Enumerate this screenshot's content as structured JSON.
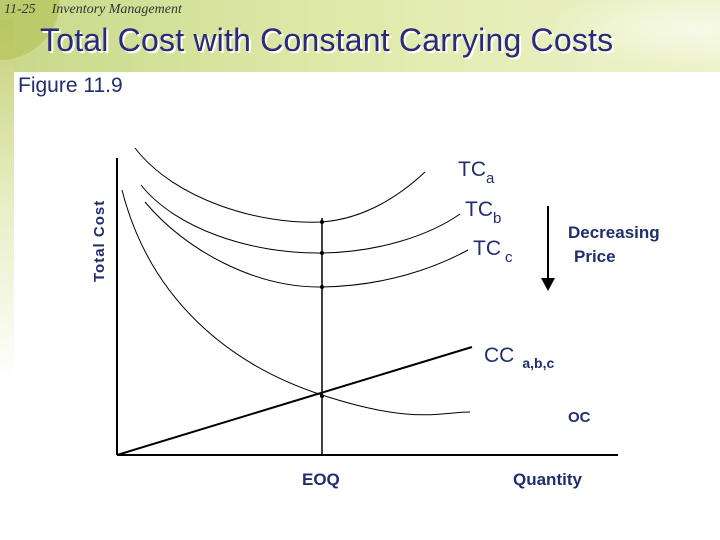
{
  "slide": {
    "number": "11-25",
    "section": "Inventory Management",
    "title": "Total Cost with Constant Carrying Costs",
    "figure": "Figure 11.9"
  },
  "diagram": {
    "y_axis_label": "Total Cost",
    "x_axis_label": "Quantity",
    "eoq_label": "EOQ",
    "curves": {
      "tca": {
        "main": "TC",
        "sub": "a"
      },
      "tcb": {
        "main": "TC",
        "sub": "b"
      },
      "tcc": {
        "main": "TC",
        "sub": "c"
      },
      "cc": {
        "main": "CC",
        "sub": "a,b,c"
      },
      "oc": "OC"
    },
    "arrow_label_line1": "Decreasing",
    "arrow_label_line2": "Price"
  },
  "colors": {
    "title": "#2a2a7a",
    "figure_label": "#1f2f6e",
    "curve": "#000000",
    "header": "#c8d88a"
  }
}
